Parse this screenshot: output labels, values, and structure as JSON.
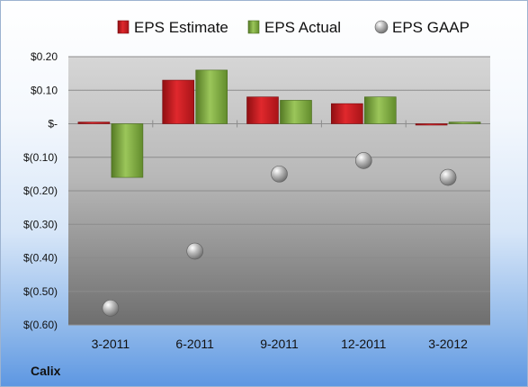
{
  "chart_data": {
    "type": "bar",
    "categories": [
      "3-2011",
      "6-2011",
      "9-2011",
      "12-2011",
      "3-2012"
    ],
    "series": [
      {
        "name": "EPS Estimate",
        "values": [
          0.005,
          0.13,
          0.08,
          0.06,
          0.0
        ],
        "color": "#c0171c"
      },
      {
        "name": "EPS Actual",
        "values": [
          -0.16,
          0.16,
          0.07,
          0.08,
          0.005
        ],
        "color": "#79a83b"
      },
      {
        "name": "EPS GAAP",
        "values": [
          -0.55,
          -0.38,
          -0.15,
          -0.11,
          -0.16
        ],
        "color": "#a9a9a9",
        "marker": "sphere"
      }
    ],
    "y_ticks": [
      "$0.20",
      "$0.10",
      "$-",
      "$(0.10)",
      "$(0.20)",
      "$(0.30)",
      "$(0.40)",
      "$(0.50)",
      "$(0.60)"
    ],
    "ylim": [
      -0.6,
      0.2
    ],
    "grid": true,
    "legend": "top"
  },
  "company": "Calix"
}
